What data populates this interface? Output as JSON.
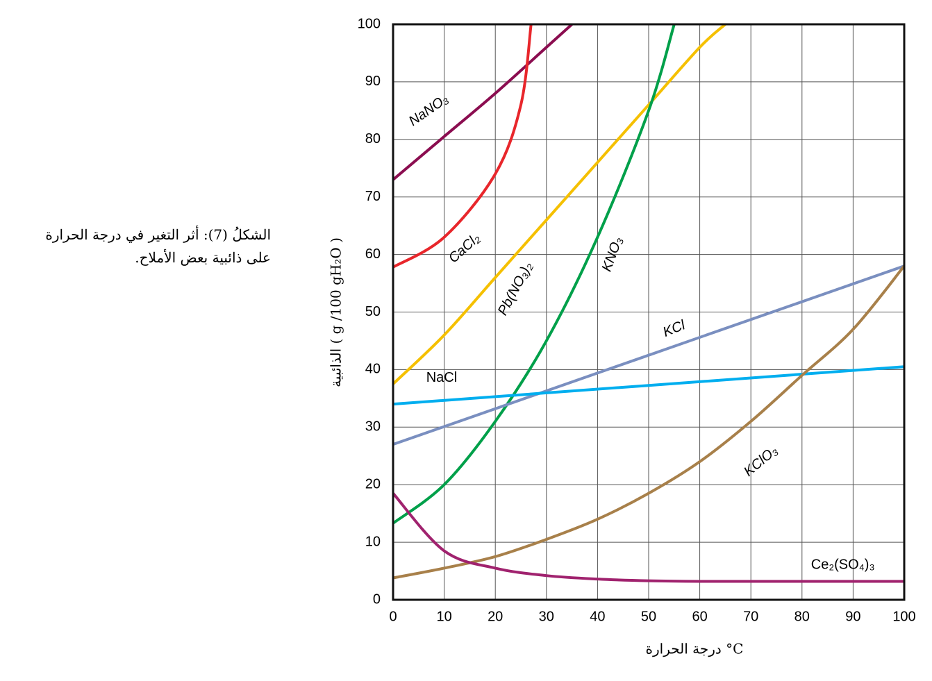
{
  "chart_data": {
    "type": "line",
    "ylabel": "الذائبية ( g /100 gH₂O )",
    "xlabel": "درجة الحرارة °C",
    "caption": [
      "الشكلُ (7): أثر التغير في درجة الحرارة",
      "على ذائبية بعض الأملاح."
    ],
    "xlim": [
      0,
      100
    ],
    "ylim": [
      0,
      100
    ],
    "xticks": [
      0,
      10,
      20,
      30,
      40,
      50,
      60,
      70,
      80,
      90,
      100
    ],
    "yticks": [
      0,
      10,
      20,
      30,
      40,
      50,
      60,
      70,
      80,
      90,
      100
    ],
    "grid": true,
    "series": [
      {
        "name": "NaNO₃",
        "color": "#8b0d50",
        "x": [
          0,
          10,
          20,
          30,
          35
        ],
        "values": [
          73,
          80.5,
          88,
          96,
          100
        ]
      },
      {
        "name": "CaCl₂",
        "color": "#e8262b",
        "x": [
          0,
          10,
          20,
          25,
          27
        ],
        "values": [
          57.8,
          63,
          74,
          86,
          100
        ]
      },
      {
        "name": "Pb(NO₃)₂",
        "color": "#f5c000",
        "x": [
          0,
          10,
          20,
          30,
          40,
          50,
          60,
          65
        ],
        "values": [
          37.5,
          46,
          56,
          66,
          76,
          86,
          96,
          100
        ]
      },
      {
        "name": "KNO₃",
        "color": "#00a04a",
        "x": [
          0,
          10,
          20,
          30,
          40,
          50,
          55
        ],
        "values": [
          13.3,
          20,
          31,
          45,
          63,
          85,
          100
        ]
      },
      {
        "name": "KCl",
        "color": "#7a8fc0",
        "x": [
          0,
          100
        ],
        "values": [
          27,
          58
        ]
      },
      {
        "name": "NaCl",
        "color": "#00aeef",
        "x": [
          0,
          100
        ],
        "values": [
          34,
          40.5
        ]
      },
      {
        "name": "KClO₃",
        "color": "#a8804a",
        "x": [
          0,
          10,
          20,
          30,
          40,
          50,
          60,
          70,
          80,
          90,
          100
        ],
        "values": [
          3.8,
          5.5,
          7.5,
          10.5,
          14,
          18.5,
          24,
          31,
          39,
          47,
          58
        ]
      },
      {
        "name": "Ce₂(SO₄)₃",
        "color": "#a0226e",
        "x": [
          0,
          10,
          20,
          30,
          40,
          50,
          60,
          80,
          100
        ],
        "values": [
          18.5,
          8.5,
          5.5,
          4.2,
          3.6,
          3.3,
          3.2,
          3.2,
          3.2
        ]
      }
    ]
  }
}
